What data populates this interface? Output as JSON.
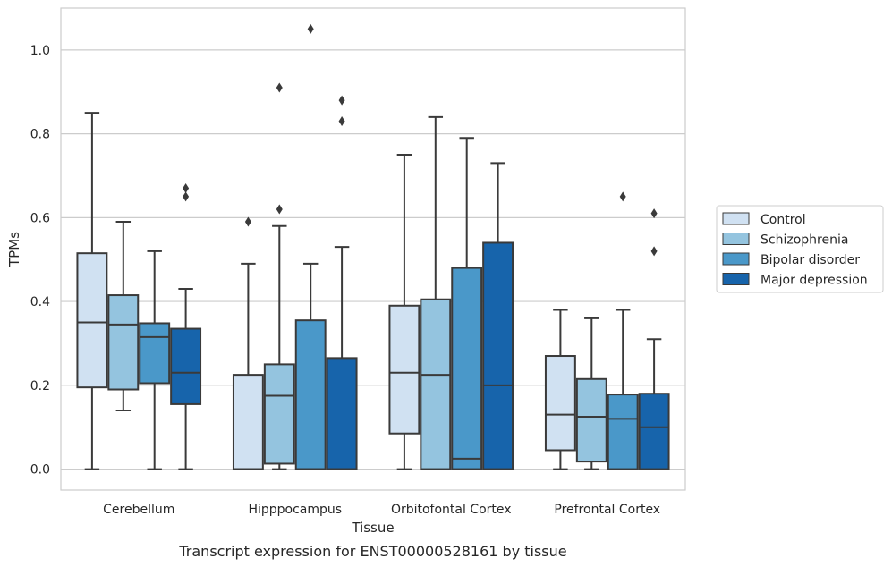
{
  "chart_data": {
    "type": "boxplot",
    "title": "",
    "caption": "Transcript expression for ENST00000528161 by tissue",
    "xlabel": "Tissue",
    "ylabel": "TPMs",
    "ylim": [
      -0.05,
      1.1
    ],
    "yticks": [
      0.0,
      0.2,
      0.4,
      0.6,
      0.8,
      1.0
    ],
    "ytick_labels": [
      "0.0",
      "0.2",
      "0.4",
      "0.6",
      "0.8",
      "1.0"
    ],
    "grid": "horizontal",
    "legend_position": "right",
    "categories": [
      "Cerebellum",
      "Hipppocampus",
      "Orbitofontal Cortex",
      "Prefrontal Cortex"
    ],
    "series": [
      {
        "name": "Control",
        "color": "#d0e1f2",
        "boxes": [
          {
            "whisker_low": 0.0,
            "q1": 0.195,
            "median": 0.35,
            "q3": 0.515,
            "whisker_high": 0.85,
            "outliers": []
          },
          {
            "whisker_low": 0.0,
            "q1": 0.0,
            "median": 0.0,
            "q3": 0.225,
            "whisker_high": 0.49,
            "outliers": [
              0.59
            ]
          },
          {
            "whisker_low": 0.0,
            "q1": 0.085,
            "median": 0.23,
            "q3": 0.39,
            "whisker_high": 0.75,
            "outliers": []
          },
          {
            "whisker_low": 0.0,
            "q1": 0.045,
            "median": 0.13,
            "q3": 0.27,
            "whisker_high": 0.38,
            "outliers": []
          }
        ]
      },
      {
        "name": "Schizophrenia",
        "color": "#94c4df",
        "boxes": [
          {
            "whisker_low": 0.14,
            "q1": 0.19,
            "median": 0.345,
            "q3": 0.415,
            "whisker_high": 0.59,
            "outliers": []
          },
          {
            "whisker_low": 0.0,
            "q1": 0.013,
            "median": 0.175,
            "q3": 0.25,
            "whisker_high": 0.58,
            "outliers": [
              0.62,
              0.91
            ]
          },
          {
            "whisker_low": 0.0,
            "q1": 0.0,
            "median": 0.225,
            "q3": 0.405,
            "whisker_high": 0.84,
            "outliers": []
          },
          {
            "whisker_low": 0.0,
            "q1": 0.018,
            "median": 0.125,
            "q3": 0.215,
            "whisker_high": 0.36,
            "outliers": []
          }
        ]
      },
      {
        "name": "Bipolar disorder",
        "color": "#4a98c9",
        "boxes": [
          {
            "whisker_low": 0.0,
            "q1": 0.205,
            "median": 0.315,
            "q3": 0.348,
            "whisker_high": 0.52,
            "outliers": []
          },
          {
            "whisker_low": 0.0,
            "q1": 0.0,
            "median": 0.0,
            "q3": 0.355,
            "whisker_high": 0.49,
            "outliers": [
              1.05
            ]
          },
          {
            "whisker_low": 0.0,
            "q1": 0.0,
            "median": 0.025,
            "q3": 0.48,
            "whisker_high": 0.79,
            "outliers": []
          },
          {
            "whisker_low": 0.0,
            "q1": 0.0,
            "median": 0.12,
            "q3": 0.178,
            "whisker_high": 0.38,
            "outliers": [
              0.65
            ]
          }
        ]
      },
      {
        "name": "Major depression",
        "color": "#1764ab",
        "boxes": [
          {
            "whisker_low": 0.0,
            "q1": 0.155,
            "median": 0.23,
            "q3": 0.335,
            "whisker_high": 0.43,
            "outliers": [
              0.65,
              0.67
            ]
          },
          {
            "whisker_low": 0.0,
            "q1": 0.0,
            "median": 0.0,
            "q3": 0.265,
            "whisker_high": 0.53,
            "outliers": [
              0.83,
              0.88
            ]
          },
          {
            "whisker_low": 0.0,
            "q1": 0.0,
            "median": 0.2,
            "q3": 0.54,
            "whisker_high": 0.73,
            "outliers": []
          },
          {
            "whisker_low": 0.0,
            "q1": 0.0,
            "median": 0.1,
            "q3": 0.18,
            "whisker_high": 0.31,
            "outliers": [
              0.52,
              0.61
            ]
          }
        ]
      }
    ]
  }
}
